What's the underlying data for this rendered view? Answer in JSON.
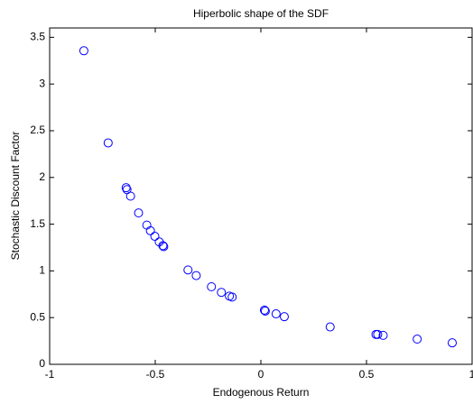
{
  "chart_data": {
    "type": "scatter",
    "title": "Hiperbolic shape of the SDF",
    "xlabel": "Endogenous Return",
    "ylabel": "Stochastic Discount Factor",
    "color": "#0000ff",
    "x": [
      -0.838,
      -0.723,
      -0.638,
      -0.634,
      -0.617,
      -0.579,
      -0.54,
      -0.523,
      -0.502,
      -0.481,
      -0.464,
      -0.46,
      -0.345,
      -0.306,
      -0.234,
      -0.187,
      -0.149,
      -0.136,
      0.017,
      0.021,
      0.072,
      0.111,
      0.328,
      0.545,
      0.553,
      0.579,
      0.74,
      0.906
    ],
    "values": [
      3.356,
      2.37,
      1.89,
      1.87,
      1.8,
      1.62,
      1.49,
      1.43,
      1.37,
      1.31,
      1.27,
      1.26,
      1.01,
      0.95,
      0.83,
      0.77,
      0.73,
      0.72,
      0.58,
      0.57,
      0.54,
      0.51,
      0.4,
      0.32,
      0.32,
      0.31,
      0.27,
      0.23
    ],
    "xlim": [
      -1,
      1
    ],
    "xticks": [
      -1,
      -0.5,
      0,
      0.5,
      1
    ],
    "ylim": [
      0,
      3.6
    ],
    "yticks": [
      0,
      0.5,
      1,
      1.5,
      2,
      2.5,
      3,
      3.5
    ]
  }
}
